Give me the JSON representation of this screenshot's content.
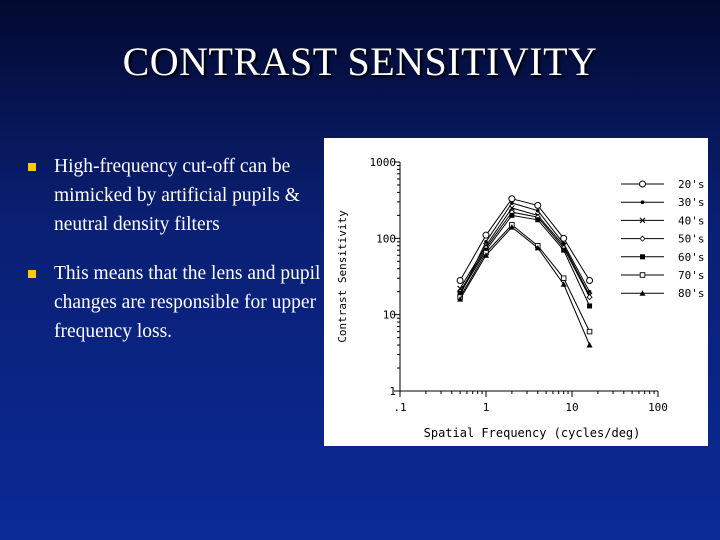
{
  "slide": {
    "title": "CONTRAST SENSITIVITY",
    "bullets": [
      {
        "text": "High-frequency cut-off can be mimicked by artificial pupils & neutral density filters"
      },
      {
        "text": "This means that the lens and pupil changes are responsible for upper frequency loss."
      }
    ]
  },
  "colors": {
    "background_top": "#020930",
    "background_bottom": "#0b2a96",
    "bullet_marker": "#ffcc00",
    "title_text": "#ffffff"
  },
  "chart_data": {
    "type": "line",
    "title": "",
    "xlabel": "Spatial Frequency (cycles/deg)",
    "ylabel": "Contrast Sensitivity",
    "x_scale": "log",
    "y_scale": "log",
    "xlim": [
      0.1,
      100
    ],
    "ylim": [
      1,
      1000
    ],
    "x_ticks": [
      ".1",
      "1",
      "10",
      "100"
    ],
    "y_ticks": [
      "1",
      "10",
      "100",
      "1000"
    ],
    "grid": false,
    "legend_position": "right",
    "x": [
      0.5,
      1,
      2,
      4,
      8,
      16
    ],
    "series": [
      {
        "name": "20's",
        "marker": "open-circle",
        "values": [
          28,
          110,
          330,
          270,
          100,
          28
        ]
      },
      {
        "name": "30's",
        "marker": "small-dot",
        "values": [
          18,
          90,
          290,
          230,
          85,
          20
        ]
      },
      {
        "name": "40's",
        "marker": "x",
        "values": [
          22,
          80,
          250,
          200,
          80,
          18
        ]
      },
      {
        "name": "50's",
        "marker": "small-diamond",
        "values": [
          20,
          75,
          220,
          190,
          75,
          17
        ]
      },
      {
        "name": "60's",
        "marker": "filled-square",
        "values": [
          19,
          70,
          200,
          175,
          70,
          13
        ]
      },
      {
        "name": "70's",
        "marker": "open-square",
        "values": [
          17,
          65,
          150,
          80,
          30,
          6
        ]
      },
      {
        "name": "80's",
        "marker": "filled-triangle",
        "values": [
          16,
          60,
          140,
          75,
          25,
          4
        ]
      }
    ]
  }
}
